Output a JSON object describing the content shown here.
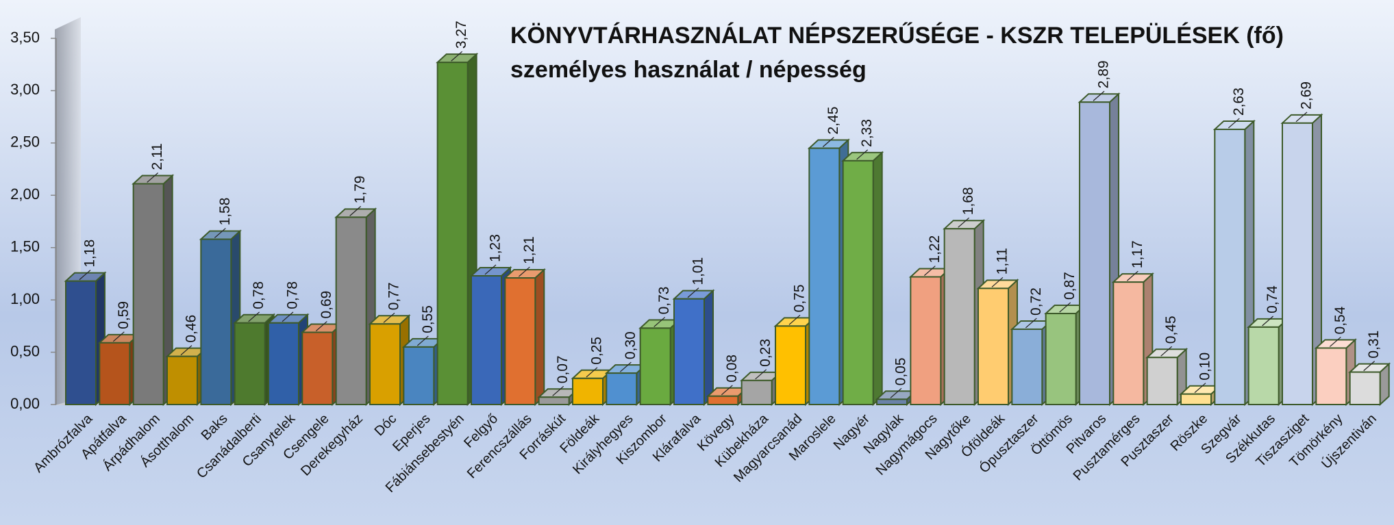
{
  "chart_data": {
    "type": "bar3d",
    "title": "KÖNYVTÁRHASZNÁLAT NÉPSZERŰSÉGE - KSZR TELEPÜLÉSEK (fő)",
    "subtitle": "személyes használat / népesség",
    "categories": [
      "Ambrózfalva",
      "Apátfalva",
      "Árpádhalom",
      "Ásotthalom",
      "Baks",
      "Csanádalberti",
      "Csanytelek",
      "Csengele",
      "Derekegyház",
      "Dóc",
      "Eperjes",
      "Fábiánsebestyén",
      "Felgyő",
      "Ferencszállás",
      "Forráskút",
      "Földeák",
      "Királyhegyes",
      "Kiszombor",
      "Klárafalva",
      "Kövegy",
      "Kübekháza",
      "Magyarcsanád",
      "Maroslele",
      "Nagyér",
      "Nagylak",
      "Nagymágocs",
      "Nagytőke",
      "Óföldeák",
      "Ópusztaszer",
      "Öttömös",
      "Pitvaros",
      "Pusztamérges",
      "Pusztaszer",
      "Röszke",
      "Szegvár",
      "Székkutas",
      "Tiszasziget",
      "Tömörkény",
      "Újszentiván"
    ],
    "values": [
      1.18,
      0.59,
      2.11,
      0.46,
      1.58,
      0.78,
      0.78,
      0.69,
      1.79,
      0.77,
      0.55,
      3.27,
      1.23,
      1.21,
      0.07,
      0.25,
      0.3,
      0.73,
      1.01,
      0.08,
      0.23,
      0.75,
      2.45,
      2.33,
      0.05,
      1.22,
      1.68,
      1.11,
      0.72,
      0.87,
      2.89,
      1.17,
      0.45,
      0.1,
      2.63,
      0.74,
      2.69,
      0.54,
      0.31
    ],
    "value_labels": [
      "1,18",
      "0,59",
      "2,11",
      "0,46",
      "1,58",
      "0,78",
      "0,78",
      "0,69",
      "1,79",
      "0,77",
      "0,55",
      "3,27",
      "1,23",
      "1,21",
      "0,07",
      "0,25",
      "0,30",
      "0,73",
      "1,01",
      "0,08",
      "0,23",
      "0,75",
      "2,45",
      "2,33",
      "0,05",
      "1,22",
      "1,68",
      "1,11",
      "0,72",
      "0,87",
      "2,89",
      "1,17",
      "0,45",
      "0,10",
      "2,63",
      "0,74",
      "2,69",
      "0,54",
      "0,31"
    ],
    "colors": [
      "#2f4f8f",
      "#b5541c",
      "#7a7a7a",
      "#bf8f00",
      "#3a6a9a",
      "#4e7a2e",
      "#3060a8",
      "#c8602a",
      "#8a8a8a",
      "#d9a000",
      "#4a85c0",
      "#5a9035",
      "#3a68b8",
      "#e07030",
      "#9a9a9a",
      "#f0b400",
      "#5090d0",
      "#6aaa40",
      "#4070c8",
      "#e07030",
      "#a5a5a5",
      "#ffc000",
      "#5b9bd5",
      "#70ad47",
      "#6a82a8",
      "#f0a080",
      "#b8b8b8",
      "#ffcc70",
      "#8aaed8",
      "#98c47e",
      "#a8b8dc",
      "#f5b8a0",
      "#d0d0d0",
      "#ffe090",
      "#b8cce8",
      "#b8d8a8",
      "#c8d4ec",
      "#fbcfc0",
      "#dcdcdc"
    ],
    "ylim": [
      0,
      3.5
    ],
    "yticks": [
      {
        "value": 0,
        "label": "0,00"
      },
      {
        "value": 0.5,
        "label": "0,50"
      },
      {
        "value": 1,
        "label": "1,00"
      },
      {
        "value": 1.5,
        "label": "1,50"
      },
      {
        "value": 2,
        "label": "2,00"
      },
      {
        "value": 2.5,
        "label": "2,50"
      },
      {
        "value": 3,
        "label": "3,00"
      },
      {
        "value": 3.5,
        "label": "3,50"
      }
    ]
  }
}
